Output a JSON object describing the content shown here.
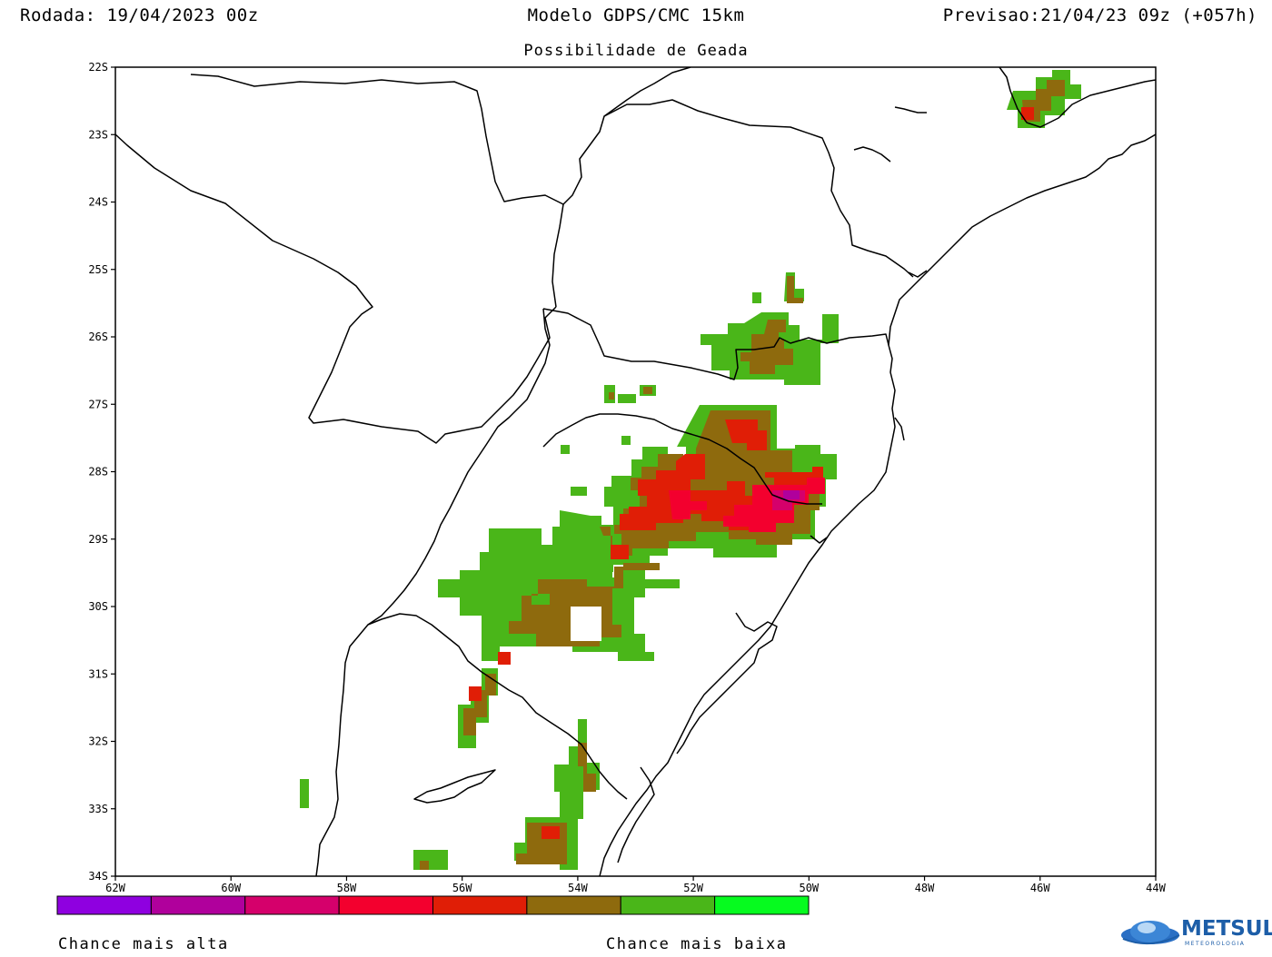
{
  "header": {
    "run": "Rodada: 19/04/2023 00z",
    "model": "Modelo GDPS/CMC 15km",
    "forecast": "Previsao:21/04/23 09z (+057h)",
    "subtitle": "Possibilidade de Geada"
  },
  "axes": {
    "lat_labels": [
      "22S",
      "23S",
      "24S",
      "25S",
      "26S",
      "27S",
      "28S",
      "29S",
      "30S",
      "31S",
      "32S",
      "33S",
      "34S"
    ],
    "lon_labels": [
      "62W",
      "60W",
      "58W",
      "56W",
      "54W",
      "52W",
      "50W",
      "48W",
      "46W",
      "44W"
    ]
  },
  "legend": {
    "colors": [
      "#8f00e0",
      "#b0009c",
      "#d5006b",
      "#f3002e",
      "#e01e06",
      "#8e6a0d",
      "#4ab619",
      "#06fb1f"
    ],
    "label_high": "Chance mais alta",
    "label_low": "Chance mais baixa"
  },
  "frost_colors": {
    "low_bright": "#06fb1f",
    "low": "#4ab619",
    "moderate": "#8e6a0d",
    "high": "#e01e06",
    "very_high": "#f3002e",
    "extreme": "#d5006b",
    "max": "#b0009c"
  },
  "logo": {
    "name": "METSUL",
    "tagline": "METEOROLOGIA"
  }
}
